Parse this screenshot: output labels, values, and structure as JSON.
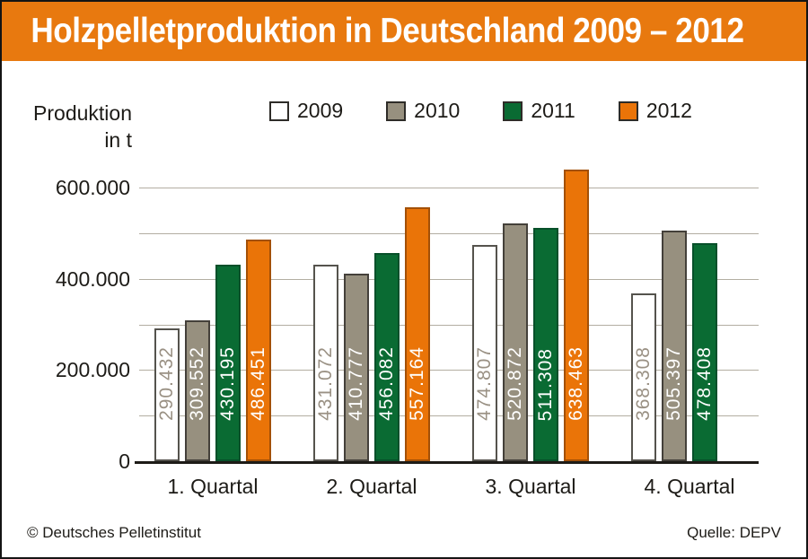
{
  "header": {
    "title": "Holzpelletproduktion in Deutschland 2009 – 2012"
  },
  "ylabel": {
    "line1": "Produktion",
    "line2": "in t"
  },
  "footer": {
    "copyright": "© Deutsches Pelletinstitut",
    "source": "Quelle: DEPV"
  },
  "colors": {
    "header_background": "#e8790f",
    "gridline": "#b3aea2",
    "axis": "#1d1b17",
    "legend_swatch_border": "#2e2c28",
    "frame_border": "#141414"
  },
  "chart_data": {
    "type": "bar",
    "title": "Holzpelletproduktion in Deutschland 2009 – 2012",
    "ylabel": "Produktion in t",
    "xlabel": "",
    "categories": [
      "1. Quartal",
      "2. Quartal",
      "3. Quartal",
      "4. Quartal"
    ],
    "series": [
      {
        "name": "2009",
        "fill": "#ffffff",
        "border": "#55534d",
        "value_text_color": "#9a9184",
        "values": [
          290432,
          431072,
          474807,
          368308
        ],
        "value_labels": [
          "290.432",
          "431.072",
          "474.807",
          "368.308"
        ]
      },
      {
        "name": "2010",
        "fill": "#97907f",
        "border": "#44403a",
        "value_text_color": "#ffffff",
        "values": [
          309552,
          410777,
          520872,
          505397
        ],
        "value_labels": [
          "309.552",
          "410.777",
          "520.872",
          "505.397"
        ]
      },
      {
        "name": "2011",
        "fill": "#0a6b33",
        "border": "#07502a",
        "value_text_color": "#ffffff",
        "values": [
          430195,
          456082,
          511308,
          478408
        ],
        "value_labels": [
          "430.195",
          "456.082",
          "511.308",
          "478.408"
        ]
      },
      {
        "name": "2012",
        "fill": "#ea7408",
        "border": "#a35007",
        "value_text_color": "#ffffff",
        "values": [
          486451,
          557164,
          638463,
          null
        ],
        "value_labels": [
          "486.451",
          "557.164",
          "638.463",
          null
        ]
      }
    ],
    "yticks": [
      {
        "value": 0,
        "label": "0"
      },
      {
        "value": 200000,
        "label": "200.000"
      },
      {
        "value": 400000,
        "label": "400.000"
      },
      {
        "value": 600000,
        "label": "600.000"
      }
    ],
    "gridline_step": 100000,
    "ylim": [
      0,
      600000
    ],
    "grid": true,
    "legend_position": "top",
    "source": "Quelle: DEPV"
  }
}
